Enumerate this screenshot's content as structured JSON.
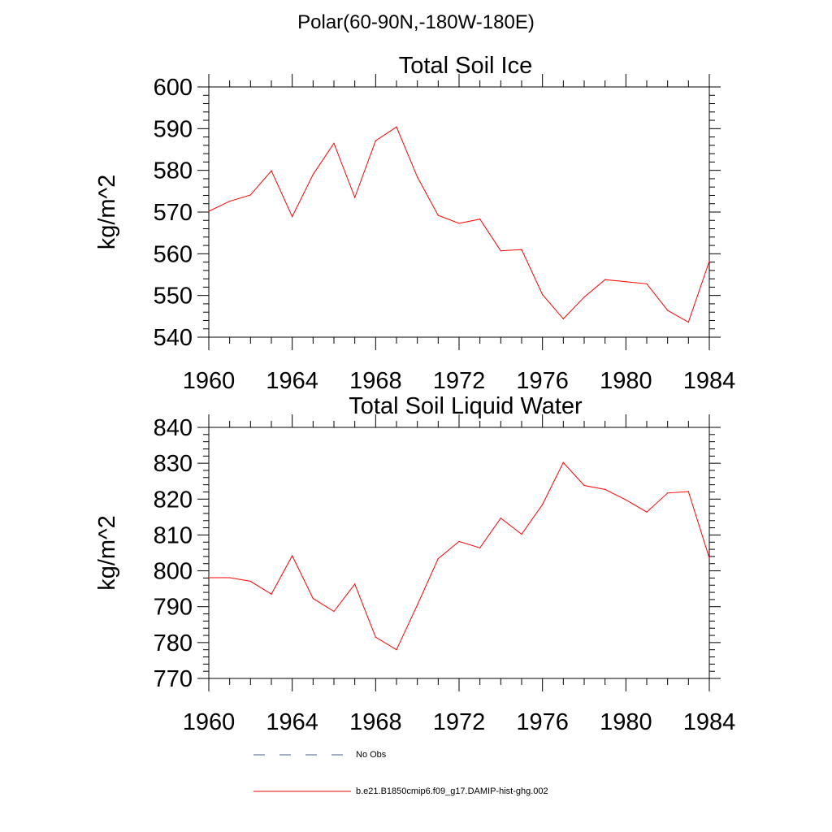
{
  "main_title": "Polar(60-90N,-180W-180E)",
  "colors": {
    "model_line": "#ff0000",
    "obs_line": "#4b5b8c"
  },
  "legend": [
    {
      "label": "No Obs",
      "style": "dashed",
      "color": "#4b5b8c"
    },
    {
      "label": "b.e21.B1850cmip6.f09_g17.DAMIP-hist-ghg.002",
      "style": "solid",
      "color": "#ff0000"
    }
  ],
  "chart_data": [
    {
      "type": "line",
      "title": "Total Soil Ice",
      "xlabel": "",
      "ylabel": "kg/m^2",
      "xlim": [
        1960,
        1984
      ],
      "ylim": [
        540,
        600
      ],
      "xticks": [
        1960,
        1964,
        1968,
        1972,
        1976,
        1980,
        1984
      ],
      "yticks": [
        540,
        550,
        560,
        570,
        580,
        590,
        600
      ],
      "grid": false,
      "series": [
        {
          "name": "b.e21.B1850cmip6.f09_g17.DAMIP-hist-ghg.002",
          "x": [
            1960,
            1961,
            1962,
            1963,
            1964,
            1965,
            1966,
            1967,
            1968,
            1969,
            1970,
            1971,
            1972,
            1973,
            1974,
            1975,
            1976,
            1977,
            1978,
            1979,
            1980,
            1981,
            1982,
            1983,
            1984
          ],
          "y": [
            570.2,
            572.6,
            574.1,
            579.9,
            568.9,
            579.0,
            586.5,
            573.5,
            587.1,
            590.4,
            578.4,
            569.2,
            567.3,
            568.3,
            560.7,
            561.0,
            550.2,
            544.4,
            549.6,
            553.8,
            553.3,
            552.8,
            546.4,
            543.6,
            558.2
          ]
        }
      ]
    },
    {
      "type": "line",
      "title": "Total Soil Liquid Water",
      "xlabel": "",
      "ylabel": "kg/m^2",
      "xlim": [
        1960,
        1984
      ],
      "ylim": [
        770,
        840
      ],
      "xticks": [
        1960,
        1964,
        1968,
        1972,
        1976,
        1980,
        1984
      ],
      "yticks": [
        770,
        780,
        790,
        800,
        810,
        820,
        830,
        840
      ],
      "grid": false,
      "series": [
        {
          "name": "b.e21.B1850cmip6.f09_g17.DAMIP-hist-ghg.002",
          "x": [
            1960,
            1961,
            1962,
            1963,
            1964,
            1965,
            1966,
            1967,
            1968,
            1969,
            1970,
            1971,
            1972,
            1973,
            1974,
            1975,
            1976,
            1977,
            1978,
            1979,
            1980,
            1981,
            1982,
            1983,
            1984
          ],
          "y": [
            798.1,
            798.1,
            797.1,
            793.5,
            804.2,
            792.3,
            788.7,
            796.3,
            781.5,
            778.0,
            790.5,
            803.4,
            808.2,
            806.4,
            814.7,
            810.2,
            818.5,
            830.2,
            823.8,
            822.7,
            819.8,
            816.4,
            821.7,
            822.1,
            803.6
          ]
        }
      ]
    }
  ]
}
